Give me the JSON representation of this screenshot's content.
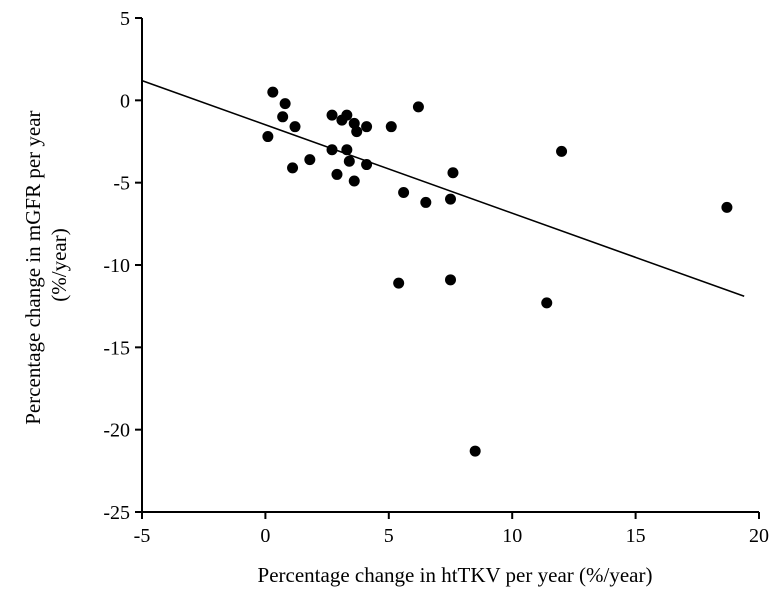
{
  "chart_data": {
    "type": "scatter",
    "title": "",
    "xlabel": "Percentage change in htTKV per year (%/year)",
    "ylabel_lines": [
      "Percentage change in mGFR per year",
      "(%/year)"
    ],
    "xlim": [
      -5,
      20
    ],
    "ylim": [
      -25,
      5
    ],
    "x_ticks": [
      -5,
      0,
      5,
      10,
      15,
      20
    ],
    "y_ticks": [
      5,
      0,
      -5,
      -10,
      -15,
      -20,
      -25
    ],
    "grid": false,
    "legend": "none",
    "points": [
      {
        "x": 0.1,
        "y": -2.2
      },
      {
        "x": 0.3,
        "y": 0.5
      },
      {
        "x": 0.7,
        "y": -1.0
      },
      {
        "x": 0.8,
        "y": -0.2
      },
      {
        "x": 1.1,
        "y": -4.1
      },
      {
        "x": 1.2,
        "y": -1.6
      },
      {
        "x": 1.8,
        "y": -3.6
      },
      {
        "x": 2.7,
        "y": -0.9
      },
      {
        "x": 2.7,
        "y": -3.0
      },
      {
        "x": 2.9,
        "y": -4.5
      },
      {
        "x": 3.1,
        "y": -1.2
      },
      {
        "x": 3.3,
        "y": -0.9
      },
      {
        "x": 3.3,
        "y": -3.0
      },
      {
        "x": 3.4,
        "y": -3.7
      },
      {
        "x": 3.6,
        "y": -1.4
      },
      {
        "x": 3.7,
        "y": -1.9
      },
      {
        "x": 3.6,
        "y": -4.9
      },
      {
        "x": 4.1,
        "y": -1.6
      },
      {
        "x": 4.1,
        "y": -3.9
      },
      {
        "x": 5.1,
        "y": -1.6
      },
      {
        "x": 5.4,
        "y": -11.1
      },
      {
        "x": 5.6,
        "y": -5.6
      },
      {
        "x": 6.2,
        "y": -0.4
      },
      {
        "x": 6.5,
        "y": -6.2
      },
      {
        "x": 7.5,
        "y": -10.9
      },
      {
        "x": 7.5,
        "y": -6.0
      },
      {
        "x": 7.6,
        "y": -4.4
      },
      {
        "x": 8.5,
        "y": -21.3
      },
      {
        "x": 11.4,
        "y": -12.3
      },
      {
        "x": 12.0,
        "y": -3.1
      },
      {
        "x": 18.7,
        "y": -6.5
      }
    ],
    "trendline": {
      "x": [
        -5,
        19.4
      ],
      "y": [
        1.2,
        -11.9
      ]
    }
  }
}
